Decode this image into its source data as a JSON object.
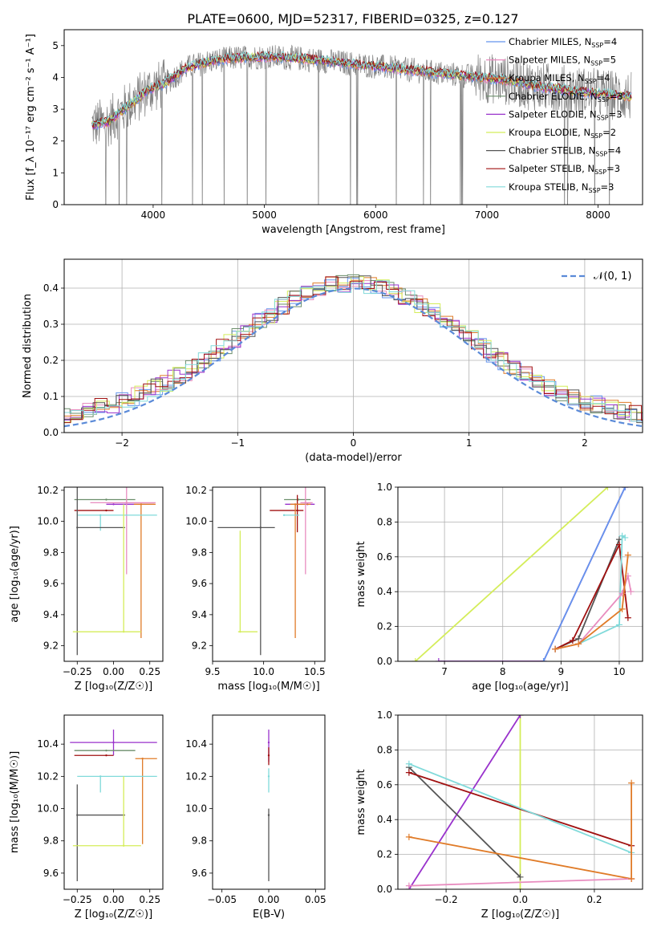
{
  "figure_title": "PLATE=0600, MJD=52317, FIBERID=0325, z=0.127",
  "chart_data": [
    {
      "type": "line",
      "panel": "spectrum",
      "xlabel": "wavelength [Angstrom, rest frame]",
      "ylabel": "Flux [f_λ 10⁻¹⁷ erg cm⁻² s⁻¹ A⁻¹]",
      "xlim": [
        3200,
        8400
      ],
      "ylim": [
        0,
        5.5
      ],
      "xticks": [
        "4000",
        "5000",
        "6000",
        "7000",
        "8000"
      ],
      "yticks": [
        "0",
        "1",
        "2",
        "3",
        "4",
        "5"
      ],
      "legend_position": "upper right",
      "series": [
        {
          "name": "Chabrier MILES, N_SSP=4",
          "color": "#6495ed",
          "label_main": "Chabrier MILES, N",
          "label_sub": "SSP",
          "label_tail": "=4"
        },
        {
          "name": "Salpeter MILES, N_SSP=5",
          "color": "#e88cbf",
          "label_main": "Salpeter MILES, N",
          "label_sub": "SSP",
          "label_tail": "=5"
        },
        {
          "name": "Kroupa MILES, N_SSP=4",
          "color": "#e07b28",
          "label_main": "Kroupa MILES, N",
          "label_sub": "SSP",
          "label_tail": "=4"
        },
        {
          "name": "Chabrier ELODIE, N_SSP=3",
          "color": "#6b8e6b",
          "label_main": "Chabrier ELODIE, N",
          "label_sub": "SSP",
          "label_tail": "=3"
        },
        {
          "name": "Salpeter ELODIE, N_SSP=3",
          "color": "#9932cc",
          "label_main": "Salpeter ELODIE, N",
          "label_sub": "SSP",
          "label_tail": "=3"
        },
        {
          "name": "Kroupa ELODIE, N_SSP=2",
          "color": "#d4ed5a",
          "label_main": "Kroupa ELODIE, N",
          "label_sub": "SSP",
          "label_tail": "=2"
        },
        {
          "name": "Chabrier STELIB, N_SSP=4",
          "color": "#555555",
          "label_main": "Chabrier STELIB, N",
          "label_sub": "SSP",
          "label_tail": "=4"
        },
        {
          "name": "Salpeter STELIB, N_SSP=3",
          "color": "#a01010",
          "label_main": "Salpeter STELIB, N",
          "label_sub": "SSP",
          "label_tail": "=3"
        },
        {
          "name": "Kroupa STELIB, N_SSP=3",
          "color": "#80dada",
          "label_main": "Kroupa STELIB, N",
          "label_sub": "SSP",
          "label_tail": "=3"
        }
      ],
      "data_color": "#808080",
      "continuum_points": [
        [
          3450,
          2.5
        ],
        [
          3600,
          2.6
        ],
        [
          3700,
          2.9
        ],
        [
          3850,
          3.3
        ],
        [
          3950,
          3.6
        ],
        [
          4100,
          3.8
        ],
        [
          4300,
          4.3
        ],
        [
          4500,
          4.5
        ],
        [
          4700,
          4.6
        ],
        [
          5000,
          4.65
        ],
        [
          5300,
          4.6
        ],
        [
          5600,
          4.5
        ],
        [
          6000,
          4.35
        ],
        [
          6400,
          4.2
        ],
        [
          6800,
          4.05
        ],
        [
          7200,
          3.9
        ],
        [
          7400,
          3.75
        ],
        [
          7600,
          3.65
        ],
        [
          8000,
          3.5
        ],
        [
          8300,
          3.4
        ]
      ]
    },
    {
      "type": "step",
      "panel": "residual-distribution",
      "xlabel": "(data-model)/error",
      "ylabel": "Normed distribution",
      "xlim": [
        -2.5,
        2.5
      ],
      "ylim": [
        0,
        0.48
      ],
      "xticks": [
        "−2",
        "−1",
        "0",
        "1",
        "2"
      ],
      "yticks": [
        "0.0",
        "0.1",
        "0.2",
        "0.3",
        "0.4"
      ],
      "grid": true,
      "legend_position": "upper right",
      "reference_curve": {
        "name": "𝒩(0, 1)",
        "color": "#5a8ad8",
        "style": "dashed"
      }
    },
    {
      "type": "errorbar",
      "panel": "age-vs-Z",
      "xlabel": "Z [log₁₀(Z/Z☉)]",
      "ylabel": "age  [log₁₀(age/yr)]",
      "xlim": [
        -0.34,
        0.34
      ],
      "ylim": [
        9.1,
        10.22
      ],
      "xticks": [
        "−0.25",
        "0.00",
        "0.25"
      ],
      "yticks": [
        "9.2",
        "9.4",
        "9.6",
        "9.8",
        "10.0",
        "10.2"
      ],
      "points": [
        {
          "color": "#6b8e6b",
          "x": -0.05,
          "xerr": [
            0.22,
            0.2
          ],
          "y": 10.14
        },
        {
          "color": "#9932cc",
          "x": 0.0,
          "xerr": [
            0.05,
            0.28
          ],
          "y": 10.11
        },
        {
          "color": "#a01010",
          "x": -0.05,
          "xerr": [
            0.22,
            0.05
          ],
          "y": 10.07
        },
        {
          "color": "#e07b28",
          "x": 0.19,
          "xerr": [
            0.05,
            0.1
          ],
          "y": 10.11,
          "yerr": [
            0.86,
            0.0
          ]
        },
        {
          "color": "#e88cbf",
          "x": 0.09,
          "xerr": [
            0.25,
            0.2
          ],
          "y": 10.12,
          "yerr": [
            0.46,
            0.1
          ]
        },
        {
          "color": "#80dada",
          "x": -0.09,
          "xerr": [
            0.16,
            0.39
          ],
          "y": 10.04,
          "yerr": [
            0.1,
            0.0
          ]
        },
        {
          "color": "#555555",
          "x": -0.25,
          "xerr": [
            0.0,
            0.33
          ],
          "y": 9.96,
          "yerr": [
            0.82,
            0.26
          ]
        },
        {
          "color": "#d4ed5a",
          "x": 0.07,
          "xerr": [
            0.35,
            0.12
          ],
          "y": 9.29,
          "yerr": [
            0.0,
            0.82
          ]
        }
      ]
    },
    {
      "type": "errorbar",
      "panel": "age-vs-mass",
      "xlabel": "mass [log₁₀(M/M☉)]",
      "ylabel": "",
      "xlim": [
        9.5,
        10.6
      ],
      "ylim": [
        9.1,
        10.22
      ],
      "xticks": [
        "9.5",
        "10.0",
        "10.5"
      ],
      "yticks": [
        "9.2",
        "9.4",
        "9.6",
        "9.8",
        "10.0",
        "10.2"
      ],
      "points": [
        {
          "color": "#6b8e6b",
          "x": 10.34,
          "xerr": [
            0.14,
            0.12
          ],
          "y": 10.14
        },
        {
          "color": "#9932cc",
          "x": 10.43,
          "xerr": [
            0.22,
            0.07
          ],
          "y": 10.11
        },
        {
          "color": "#a01010",
          "x": 10.33,
          "xerr": [
            0.27,
            0.06
          ],
          "y": 10.07,
          "yerr": [
            0.14,
            0.1
          ]
        },
        {
          "color": "#e07b28",
          "x": 10.31,
          "xerr": [
            0.05,
            0.15
          ],
          "y": 10.11,
          "yerr": [
            0.86,
            0.0
          ]
        },
        {
          "color": "#e88cbf",
          "x": 10.41,
          "xerr": [
            0.05,
            0.07
          ],
          "y": 10.12,
          "yerr": [
            0.46,
            0.1
          ]
        },
        {
          "color": "#80dada",
          "x": 10.2,
          "xerr": [
            0.0,
            0.15
          ],
          "y": 10.04
        },
        {
          "color": "#555555",
          "x": 9.97,
          "xerr": [
            0.42,
            0.14
          ],
          "y": 9.96,
          "yerr": [
            0.82,
            0.26
          ]
        },
        {
          "color": "#d4ed5a",
          "x": 9.77,
          "xerr": [
            0.02,
            0.17
          ],
          "y": 9.29,
          "yerr": [
            0.0,
            0.65
          ]
        }
      ]
    },
    {
      "type": "line",
      "panel": "mass-weight-vs-age",
      "xlabel": "age  [log₁₀(age/yr)]",
      "ylabel": "mass weight",
      "xlim": [
        6.2,
        10.4
      ],
      "ylim": [
        0,
        1.0
      ],
      "xticks": [
        "7",
        "8",
        "9",
        "10"
      ],
      "yticks": [
        "0.0",
        "0.2",
        "0.4",
        "0.6",
        "0.8",
        "1.0"
      ],
      "grid": true,
      "series": [
        {
          "color": "#d4ed5a",
          "x": [
            6.5,
            9.8
          ],
          "y": [
            0.0,
            1.0
          ]
        },
        {
          "color": "#9932cc",
          "x": [
            6.9,
            8.7,
            10.1
          ],
          "y": [
            0.0,
            0.0,
            1.0
          ]
        },
        {
          "color": "#6495ed",
          "x": [
            8.7,
            10.1
          ],
          "y": [
            0.0,
            1.0
          ]
        },
        {
          "color": "#555555",
          "x": [
            8.9,
            9.3,
            10.0
          ],
          "y": [
            0.07,
            0.13,
            0.7
          ]
        },
        {
          "color": "#a01010",
          "x": [
            8.9,
            9.2,
            10.0,
            10.15
          ],
          "y": [
            0.07,
            0.12,
            0.67,
            0.25
          ]
        },
        {
          "color": "#80dada",
          "x": [
            8.9,
            9.3,
            10.0,
            10.05,
            10.1
          ],
          "y": [
            0.07,
            0.1,
            0.21,
            0.72,
            0.71
          ]
        },
        {
          "color": "#e88cbf",
          "x": [
            8.9,
            9.3,
            10.05,
            10.15,
            10.2
          ],
          "y": [
            0.07,
            0.1,
            0.39,
            0.49,
            0.4
          ]
        },
        {
          "color": "#e07b28",
          "x": [
            8.9,
            9.3,
            10.05,
            10.15
          ],
          "y": [
            0.07,
            0.1,
            0.3,
            0.61
          ]
        }
      ]
    },
    {
      "type": "errorbar",
      "panel": "mass-vs-Z",
      "xlabel": "Z [log₁₀(Z/Z☉)]",
      "ylabel": "mass [log₁₀(M/M☉)]",
      "xlim": [
        -0.34,
        0.34
      ],
      "ylim": [
        9.5,
        10.58
      ],
      "xticks": [
        "−0.25",
        "0.00",
        "0.25"
      ],
      "yticks": [
        "9.6",
        "9.8",
        "10.0",
        "10.2",
        "10.4"
      ],
      "points": [
        {
          "color": "#9932cc",
          "x": 0.0,
          "xerr": [
            0.3,
            0.3
          ],
          "y": 10.41,
          "yerr": [
            0.08,
            0.08
          ]
        },
        {
          "color": "#6b8e6b",
          "x": -0.05,
          "xerr": [
            0.22,
            0.2
          ],
          "y": 10.36
        },
        {
          "color": "#a01010",
          "x": -0.05,
          "xerr": [
            0.22,
            0.05
          ],
          "y": 10.33
        },
        {
          "color": "#e07b28",
          "x": 0.2,
          "xerr": [
            0.05,
            0.1
          ],
          "y": 10.31,
          "yerr": [
            0.53,
            0.0
          ]
        },
        {
          "color": "#80dada",
          "x": -0.09,
          "xerr": [
            0.16,
            0.39
          ],
          "y": 10.2,
          "yerr": [
            0.1,
            0.0
          ]
        },
        {
          "color": "#555555",
          "x": -0.25,
          "xerr": [
            0.0,
            0.33
          ],
          "y": 9.96,
          "yerr": [
            0.41,
            0.19
          ]
        },
        {
          "color": "#d4ed5a",
          "x": 0.07,
          "xerr": [
            0.35,
            0.12
          ],
          "y": 9.77,
          "yerr": [
            0.0,
            0.43
          ]
        }
      ]
    },
    {
      "type": "errorbar",
      "panel": "mass-vs-EBV",
      "xlabel": "E(B-V)",
      "ylabel": "",
      "xlim": [
        -0.06,
        0.06
      ],
      "ylim": [
        9.5,
        10.58
      ],
      "xticks": [
        "−0.05",
        "0.00",
        "0.05"
      ],
      "yticks": [
        "9.6",
        "9.8",
        "10.0",
        "10.2",
        "10.4"
      ],
      "points": [
        {
          "color": "#9932cc",
          "x": 0.0,
          "y": 10.41,
          "yerr": [
            0.12,
            0.08
          ]
        },
        {
          "color": "#a01010",
          "x": 0.0,
          "y": 10.33,
          "yerr": [
            0.06,
            0.05
          ]
        },
        {
          "color": "#80dada",
          "x": 0.0,
          "y": 10.2,
          "yerr": [
            0.1,
            0.05
          ]
        },
        {
          "color": "#555555",
          "x": 0.0,
          "y": 9.96,
          "yerr": [
            0.41,
            0.04
          ]
        }
      ]
    },
    {
      "type": "line",
      "panel": "mass-weight-vs-Z",
      "xlabel": "Z [log₁₀(Z/Z☉)]",
      "ylabel": "mass weight",
      "xlim": [
        -0.33,
        0.33
      ],
      "ylim": [
        0,
        1.0
      ],
      "xticks": [
        "−0.2",
        "0.0",
        "0.2"
      ],
      "yticks": [
        "0.0",
        "0.2",
        "0.4",
        "0.6",
        "0.8",
        "1.0"
      ],
      "grid": true,
      "series": [
        {
          "color": "#d4ed5a",
          "x": [
            0.0,
            0.0
          ],
          "y": [
            0.0,
            1.0
          ]
        },
        {
          "color": "#9932cc",
          "x": [
            -0.3,
            0.0
          ],
          "y": [
            0.0,
            1.0
          ]
        },
        {
          "color": "#555555",
          "x": [
            -0.3,
            0.0
          ],
          "y": [
            0.7,
            0.07
          ]
        },
        {
          "color": "#a01010",
          "x": [
            -0.3,
            0.3
          ],
          "y": [
            0.67,
            0.25
          ]
        },
        {
          "color": "#80dada",
          "x": [
            -0.3,
            0.3
          ],
          "y": [
            0.72,
            0.21
          ]
        },
        {
          "color": "#e07b28",
          "x": [
            -0.3,
            0.3
          ],
          "y": [
            0.3,
            0.06
          ]
        },
        {
          "color": "#e88cbf",
          "x": [
            -0.3,
            0.3
          ],
          "y": [
            0.02,
            0.06
          ]
        },
        {
          "color": "#e07b28",
          "x": [
            0.3,
            0.3
          ],
          "y": [
            0.06,
            0.61
          ]
        }
      ]
    }
  ]
}
